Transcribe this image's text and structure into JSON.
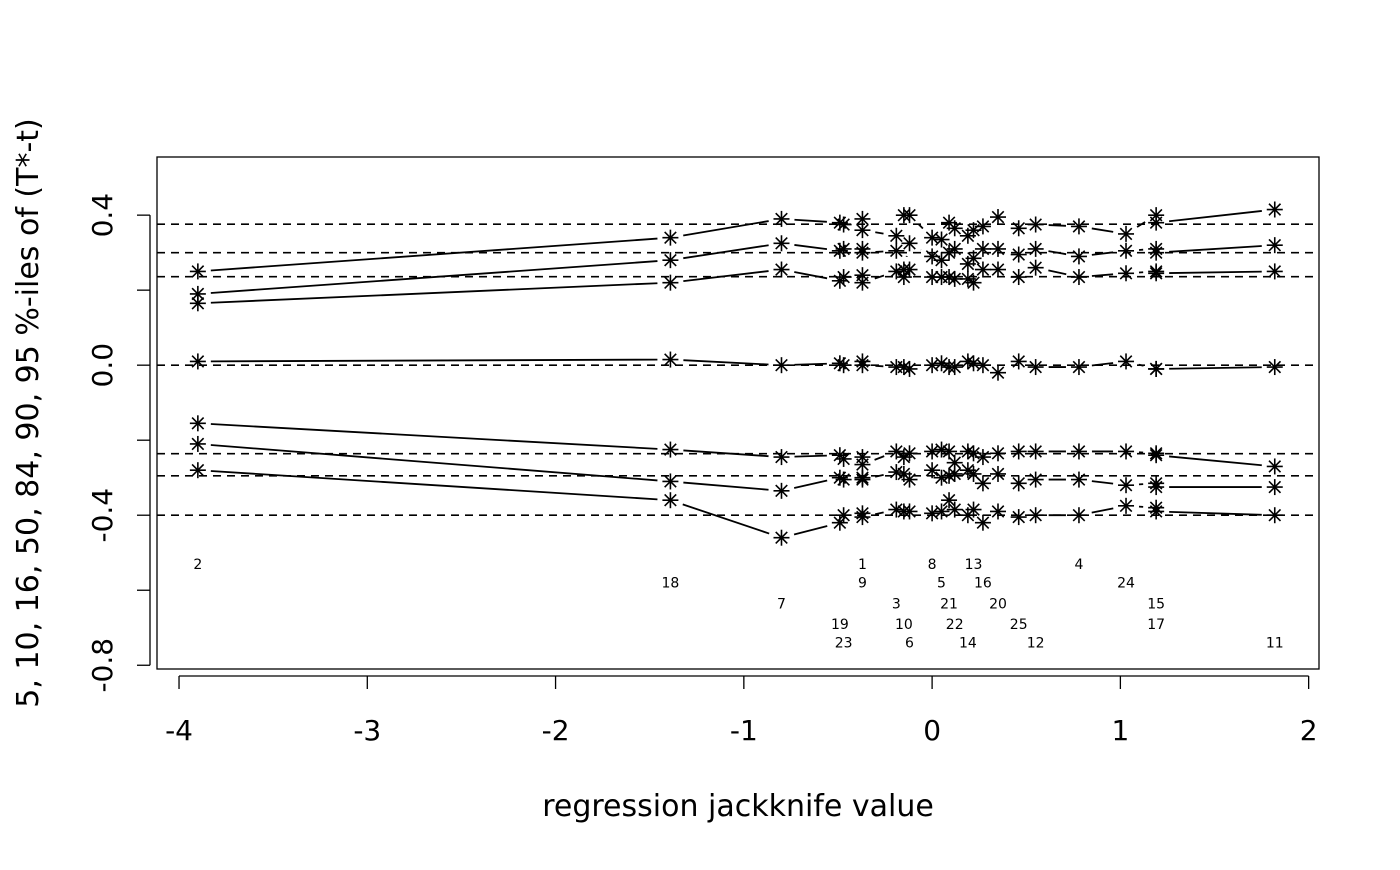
{
  "chart_data": {
    "type": "line",
    "title": "",
    "xlabel": "regression jackknife value",
    "ylabel": "5, 10, 16, 50, 84, 90, 95 %-iles of (T*-t)",
    "xlim": [
      -4.117,
      2.055
    ],
    "ylim": [
      -0.81,
      0.555
    ],
    "xticks": [
      -4,
      -3,
      -2,
      -1,
      0,
      1,
      2
    ],
    "xtick_labels": [
      "-4",
      "-3",
      "-2",
      "-1",
      "0",
      "1",
      "2"
    ],
    "yticks": [
      -0.8,
      -0.6,
      -0.4,
      -0.2,
      0.0,
      0.2,
      0.4
    ],
    "ytick_labels": [
      "-0.8",
      "",
      "-0.4",
      "",
      "0.0",
      "",
      "0.4"
    ],
    "grid": false,
    "percentiles": [
      5,
      10,
      16,
      50,
      84,
      90,
      95
    ],
    "reference_lines": [
      0.376,
      0.3,
      0.236,
      0.0,
      -0.236,
      -0.295,
      -0.4
    ],
    "label_levels": [
      -0.53,
      -0.58,
      -0.635,
      -0.69,
      -0.74
    ],
    "points": [
      {
        "id": "2",
        "x": -3.9,
        "level": 0,
        "q": [
          0.25,
          0.19,
          0.165,
          0.01,
          -0.155,
          -0.21,
          -0.28
        ]
      },
      {
        "id": "18",
        "x": -1.39,
        "level": 1,
        "q": [
          0.34,
          0.28,
          0.22,
          0.015,
          -0.225,
          -0.31,
          -0.36
        ]
      },
      {
        "id": "7",
        "x": -0.8,
        "level": 2,
        "q": [
          0.39,
          0.325,
          0.255,
          0.0,
          -0.245,
          -0.335,
          -0.46
        ]
      },
      {
        "id": "19",
        "x": -0.49,
        "level": 3,
        "q": [
          0.38,
          0.305,
          0.225,
          0.005,
          -0.24,
          -0.3,
          -0.42
        ]
      },
      {
        "id": "23",
        "x": -0.47,
        "level": 4,
        "q": [
          0.375,
          0.31,
          0.235,
          0.0,
          -0.25,
          -0.305,
          -0.4
        ]
      },
      {
        "id": "1",
        "x": -0.37,
        "level": 0,
        "q": [
          0.39,
          0.31,
          0.24,
          0.01,
          -0.245,
          -0.3,
          -0.395
        ]
      },
      {
        "id": "9",
        "x": -0.37,
        "level": 1,
        "q": [
          0.36,
          0.3,
          0.22,
          0.0,
          -0.265,
          -0.305,
          -0.405
        ]
      },
      {
        "id": "3",
        "x": -0.19,
        "level": 2,
        "q": [
          0.345,
          0.305,
          0.25,
          -0.005,
          -0.23,
          -0.285,
          -0.385
        ]
      },
      {
        "id": "10",
        "x": -0.15,
        "level": 3,
        "q": [
          0.4,
          0.255,
          0.235,
          -0.005,
          -0.245,
          -0.29,
          -0.39
        ]
      },
      {
        "id": "6",
        "x": -0.12,
        "level": 4,
        "q": [
          0.4,
          0.325,
          0.255,
          -0.01,
          -0.235,
          -0.305,
          -0.39
        ]
      },
      {
        "id": "8",
        "x": 0.0,
        "level": 0,
        "q": [
          0.34,
          0.29,
          0.235,
          0.0,
          -0.23,
          -0.28,
          -0.395
        ]
      },
      {
        "id": "5",
        "x": 0.05,
        "level": 1,
        "q": [
          0.335,
          0.28,
          0.235,
          0.005,
          -0.225,
          -0.3,
          -0.39
        ]
      },
      {
        "id": "21",
        "x": 0.09,
        "level": 2,
        "q": [
          0.38,
          0.3,
          0.235,
          -0.005,
          -0.23,
          -0.295,
          -0.36
        ]
      },
      {
        "id": "22",
        "x": 0.12,
        "level": 3,
        "q": [
          0.365,
          0.31,
          0.23,
          -0.005,
          -0.26,
          -0.29,
          -0.385
        ]
      },
      {
        "id": "14",
        "x": 0.19,
        "level": 4,
        "q": [
          0.345,
          0.27,
          0.23,
          0.01,
          -0.23,
          -0.28,
          -0.4
        ]
      },
      {
        "id": "13",
        "x": 0.22,
        "level": 0,
        "q": [
          0.36,
          0.285,
          0.22,
          0.005,
          -0.235,
          -0.29,
          -0.385
        ]
      },
      {
        "id": "16",
        "x": 0.27,
        "level": 1,
        "q": [
          0.37,
          0.31,
          0.255,
          0.0,
          -0.245,
          -0.315,
          -0.42
        ]
      },
      {
        "id": "20",
        "x": 0.35,
        "level": 2,
        "q": [
          0.395,
          0.31,
          0.255,
          -0.02,
          -0.235,
          -0.29,
          -0.39
        ]
      },
      {
        "id": "25",
        "x": 0.46,
        "level": 3,
        "q": [
          0.365,
          0.295,
          0.235,
          0.01,
          -0.23,
          -0.315,
          -0.405
        ]
      },
      {
        "id": "12",
        "x": 0.55,
        "level": 4,
        "q": [
          0.375,
          0.31,
          0.26,
          -0.005,
          -0.23,
          -0.305,
          -0.4
        ]
      },
      {
        "id": "4",
        "x": 0.78,
        "level": 0,
        "q": [
          0.37,
          0.29,
          0.235,
          -0.005,
          -0.23,
          -0.305,
          -0.4
        ]
      },
      {
        "id": "24",
        "x": 1.03,
        "level": 1,
        "q": [
          0.35,
          0.305,
          0.245,
          0.01,
          -0.23,
          -0.32,
          -0.375
        ]
      },
      {
        "id": "15",
        "x": 1.19,
        "level": 2,
        "q": [
          0.4,
          0.31,
          0.25,
          -0.01,
          -0.235,
          -0.315,
          -0.38
        ]
      },
      {
        "id": "17",
        "x": 1.19,
        "level": 3,
        "q": [
          0.38,
          0.3,
          0.245,
          -0.01,
          -0.24,
          -0.325,
          -0.39
        ]
      },
      {
        "id": "11",
        "x": 1.82,
        "level": 4,
        "q": [
          0.415,
          0.32,
          0.25,
          -0.005,
          -0.27,
          -0.325,
          -0.4
        ]
      }
    ]
  }
}
